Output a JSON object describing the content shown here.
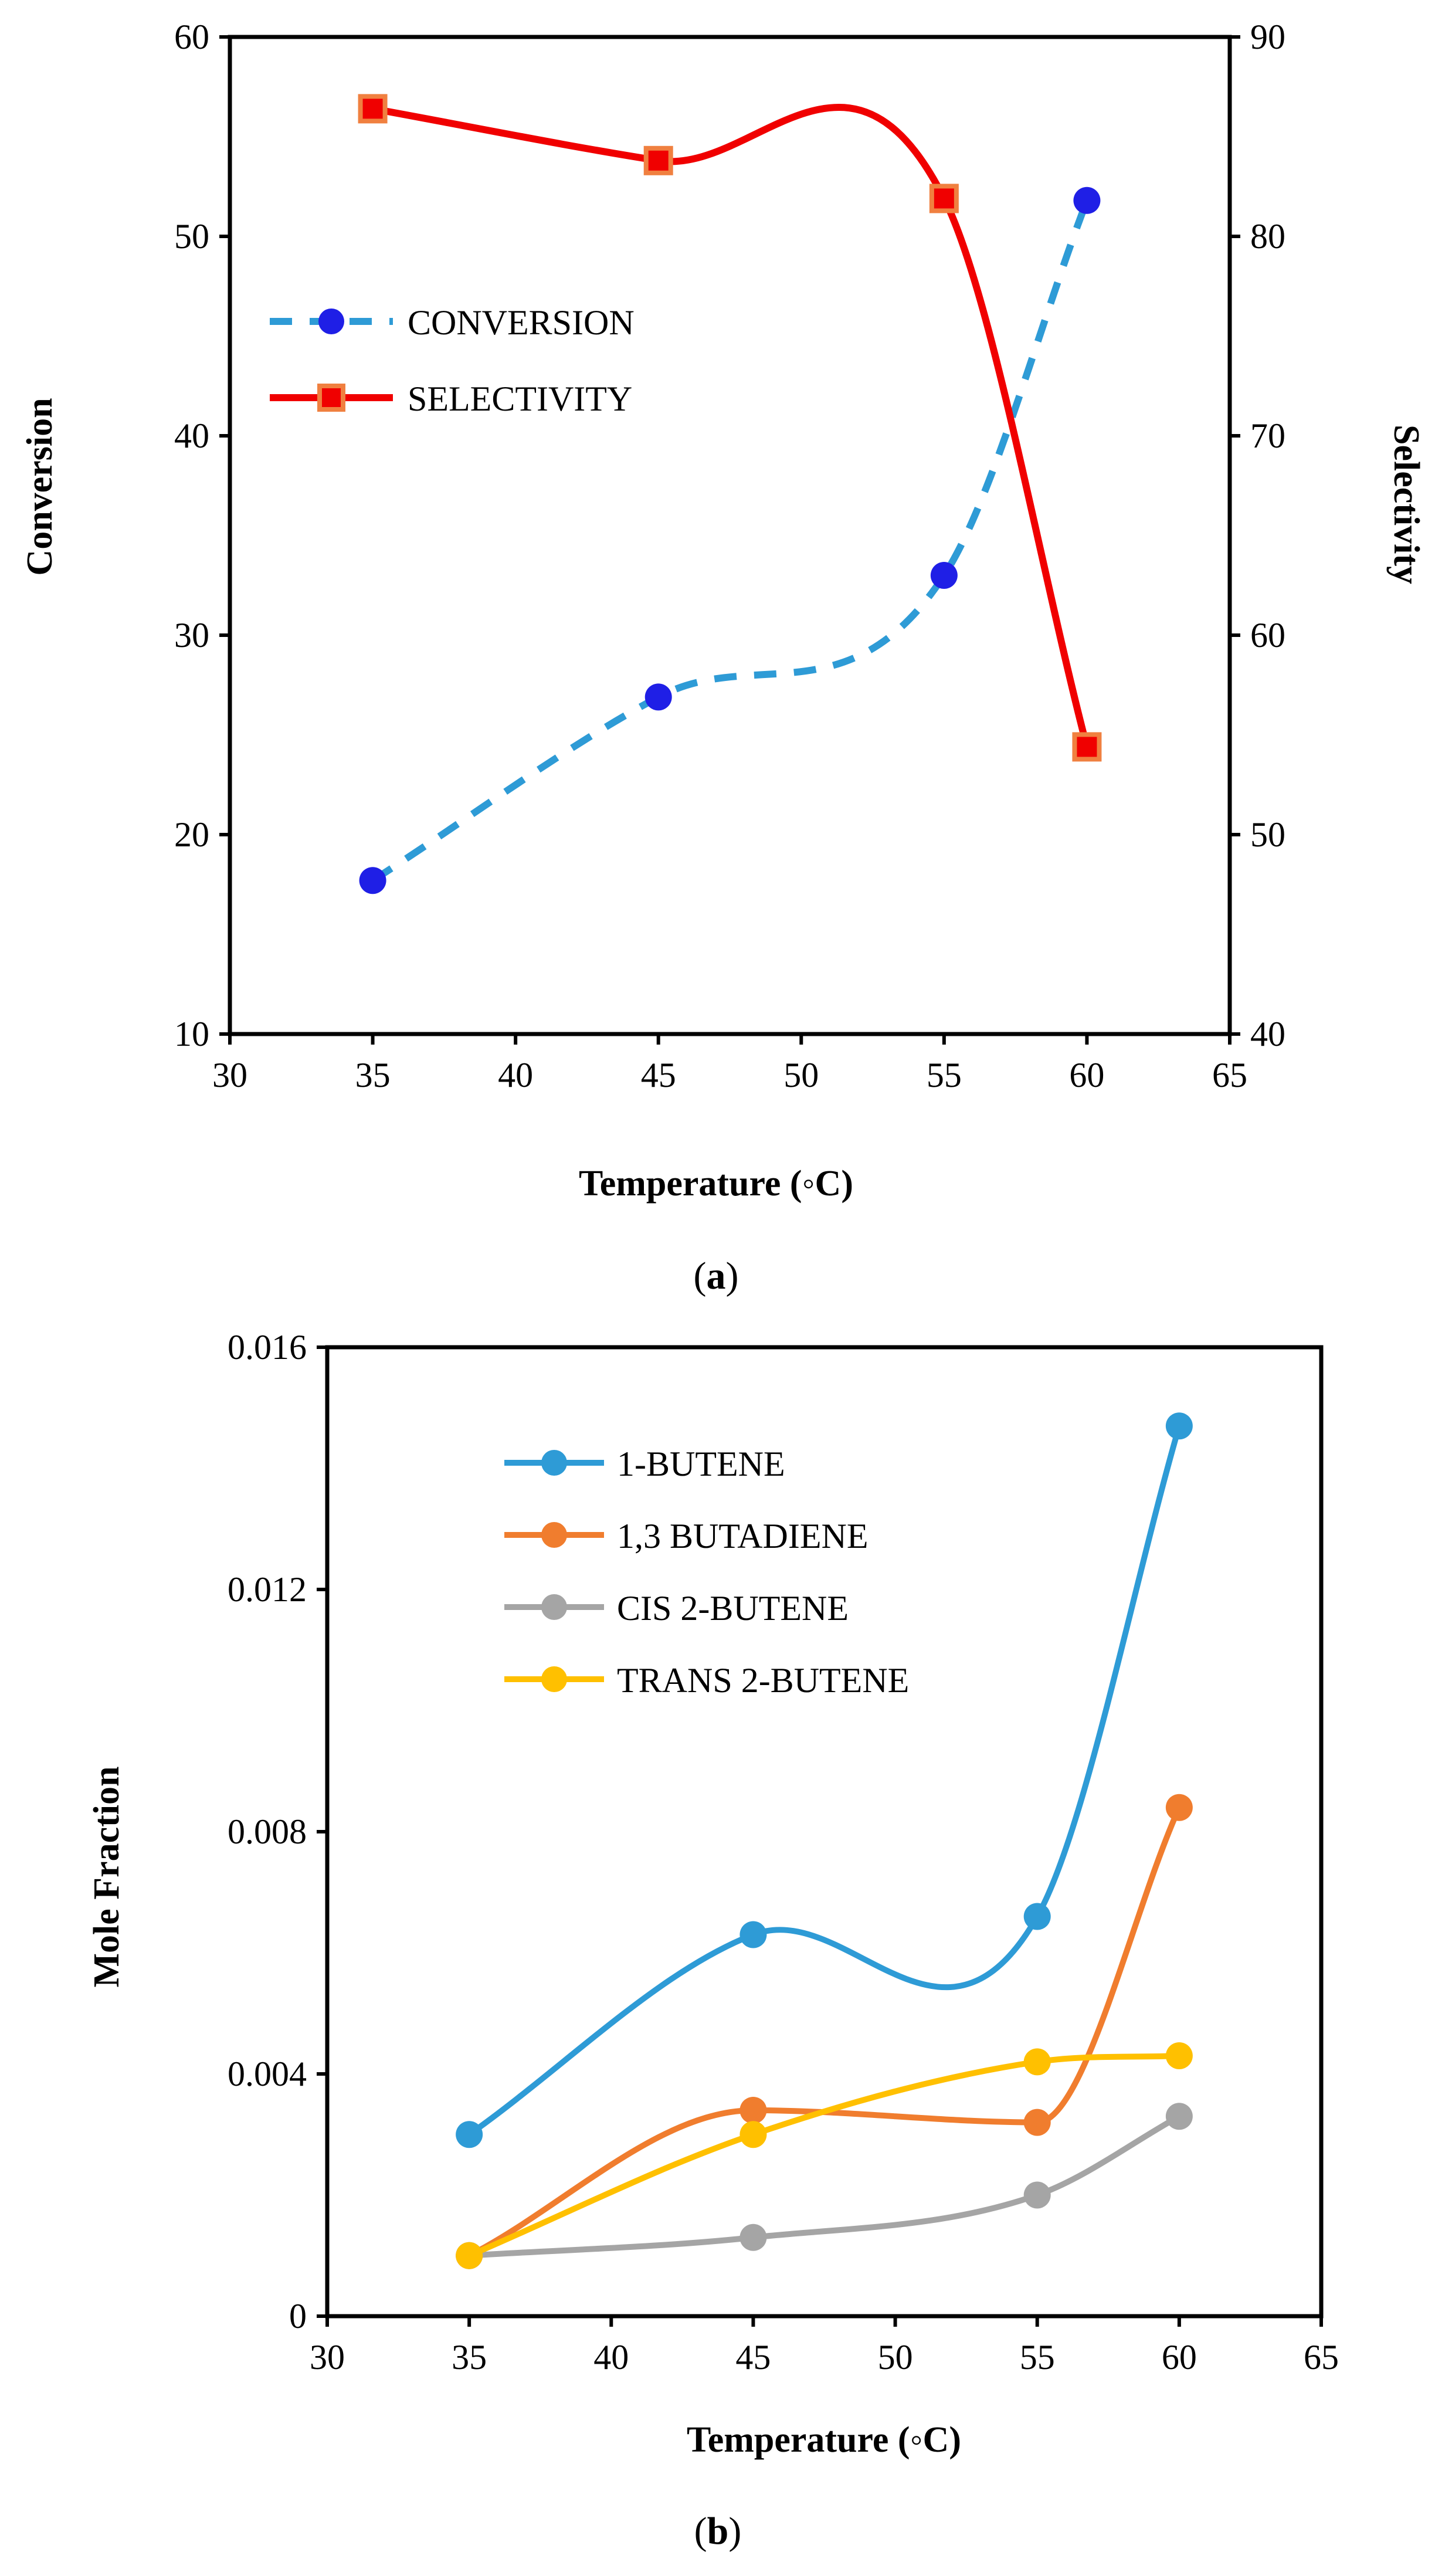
{
  "chart_data": [
    {
      "type": "line",
      "panel_caption": "(a)",
      "panel_letter": "a",
      "xlabel": "Temperature (◦C)",
      "ylabel": "Conversion",
      "y2label": "Selectivity",
      "xlim": [
        30,
        65
      ],
      "ylim": [
        10,
        60
      ],
      "y2lim": [
        40,
        90
      ],
      "xticks": [
        "30",
        "35",
        "40",
        "45",
        "50",
        "55",
        "60",
        "65"
      ],
      "yticks": [
        "10",
        "20",
        "30",
        "40",
        "50",
        "60"
      ],
      "y2ticks": [
        "40",
        "50",
        "60",
        "70",
        "80",
        "90"
      ],
      "legend_position": "upper-left",
      "series": [
        {
          "name": "CONVERSION",
          "axis": "left",
          "x": [
            35,
            45,
            55,
            60
          ],
          "values": [
            17.7,
            26.9,
            33.0,
            51.8
          ],
          "color": "#2E9BD6",
          "marker_color": "#1F1FE6",
          "style": "dashed"
        },
        {
          "name": "SELECTIVITY",
          "axis": "right",
          "x": [
            35,
            45,
            55,
            60
          ],
          "values": [
            86.4,
            83.8,
            81.9,
            54.4
          ],
          "color": "#F00000",
          "marker_color": "#F00000",
          "marker_edge": "#F08040",
          "style": "solid"
        }
      ]
    },
    {
      "type": "line",
      "panel_caption": "(b)",
      "panel_letter": "b",
      "xlabel": "Temperature (◦C)",
      "ylabel": "Mole Fraction",
      "xlim": [
        30,
        65
      ],
      "ylim": [
        0,
        0.016
      ],
      "xticks": [
        "30",
        "35",
        "40",
        "45",
        "50",
        "55",
        "60",
        "65"
      ],
      "yticks": [
        "0",
        "0.004",
        "0.008",
        "0.012",
        "0.016"
      ],
      "legend_position": "upper-left",
      "series": [
        {
          "name": "1-BUTENE",
          "x": [
            35,
            45,
            55,
            60
          ],
          "values": [
            0.003,
            0.0063,
            0.0066,
            0.0147
          ],
          "color": "#2E9BD6"
        },
        {
          "name": "1,3 BUTADIENE",
          "x": [
            35,
            45,
            55,
            60
          ],
          "values": [
            0.001,
            0.0034,
            0.0032,
            0.0084
          ],
          "color": "#F07D2E"
        },
        {
          "name": "CIS 2-BUTENE",
          "x": [
            35,
            45,
            55,
            60
          ],
          "values": [
            0.001,
            0.0013,
            0.002,
            0.0033
          ],
          "color": "#A5A5A5"
        },
        {
          "name": "TRANS 2-BUTENE",
          "x": [
            35,
            45,
            55,
            60
          ],
          "values": [
            0.001,
            0.003,
            0.0042,
            0.0043
          ],
          "color": "#FFC000"
        }
      ]
    }
  ]
}
